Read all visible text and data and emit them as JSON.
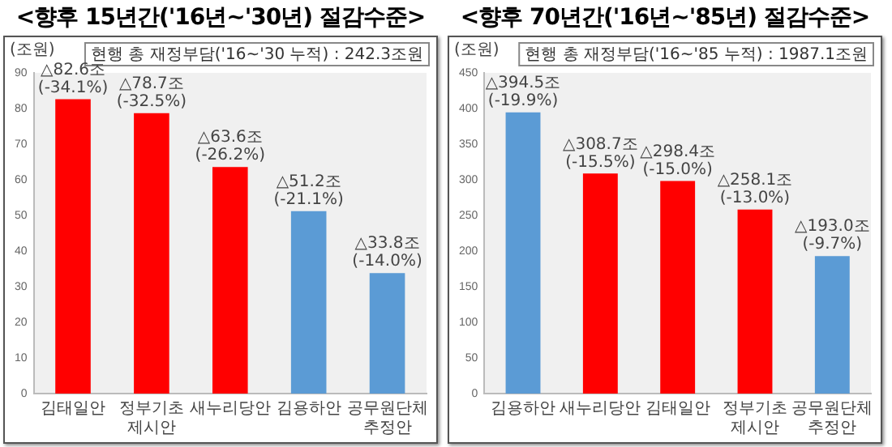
{
  "chart_data": [
    {
      "type": "bar",
      "title": "<향후  15년간('16년~'30년)  절감수준>",
      "ylabel": "(조원)",
      "annotations": [
        "현행 총 재정부담('16~'30 누적) : 242.3조원"
      ],
      "categories": [
        "김태일안",
        "정부기초 제시안",
        "새누리당안",
        "김용하안",
        "공무원단체 추정안"
      ],
      "values": [
        82.6,
        78.7,
        63.6,
        51.2,
        33.8
      ],
      "colors": [
        "#ff0000",
        "#ff0000",
        "#ff0000",
        "#5b9bd5",
        "#5b9bd5"
      ],
      "value_labels": [
        "△82.6조\n(-34.1%)",
        "△78.7조\n(-32.5%)",
        "△63.6조\n(-26.2%)",
        "△51.2조\n(-21.1%)",
        "△33.8조\n(-14.0%)"
      ],
      "ylim": [
        0,
        90
      ],
      "yticks": [
        0,
        10,
        20,
        30,
        40,
        50,
        60,
        70,
        80,
        90
      ],
      "grid": false,
      "legend": false
    },
    {
      "type": "bar",
      "title": "<향후  70년간('16년~'85년)  절감수준>",
      "ylabel": "(조원)",
      "annotations": [
        "현행 총 재정부담('16~'85 누적) : 1987.1조원"
      ],
      "categories": [
        "김용하안",
        "새누리당안",
        "김태일안",
        "정부기초 제시안",
        "공무원단체 추정안"
      ],
      "values": [
        394.5,
        308.7,
        298.4,
        258.1,
        193.0
      ],
      "colors": [
        "#5b9bd5",
        "#ff0000",
        "#ff0000",
        "#ff0000",
        "#5b9bd5"
      ],
      "value_labels": [
        "△394.5조\n(-19.9%)",
        "△308.7조\n(-15.5%)",
        "△298.4조\n(-15.0%)",
        "△258.1조\n(-13.0%)",
        "△193.0조\n(-9.7%)"
      ],
      "ylim": [
        0,
        450
      ],
      "yticks": [
        0,
        50,
        100,
        150,
        200,
        250,
        300,
        350,
        400,
        450
      ],
      "grid": false,
      "legend": false
    }
  ]
}
